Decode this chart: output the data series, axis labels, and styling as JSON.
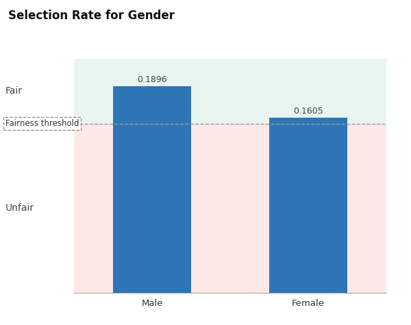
{
  "title": "Selection Rate for Gender",
  "categories": [
    "Male",
    "Female"
  ],
  "values": [
    0.1896,
    0.1605
  ],
  "bar_color": "#2e75b6",
  "fairness_threshold": 0.155,
  "ylim": [
    0,
    0.215
  ],
  "fair_label": "Fair",
  "unfair_label": "Unfair",
  "threshold_label": "Fairness threshold",
  "fair_bg_color": "#e8f5f0",
  "unfair_bg_color": "#fde8e8",
  "title_fontsize": 12,
  "label_fontsize": 10,
  "value_fontsize": 9,
  "threshold_line_color": "#999999",
  "figure_bg": "#ffffff",
  "bar_width": 0.5
}
